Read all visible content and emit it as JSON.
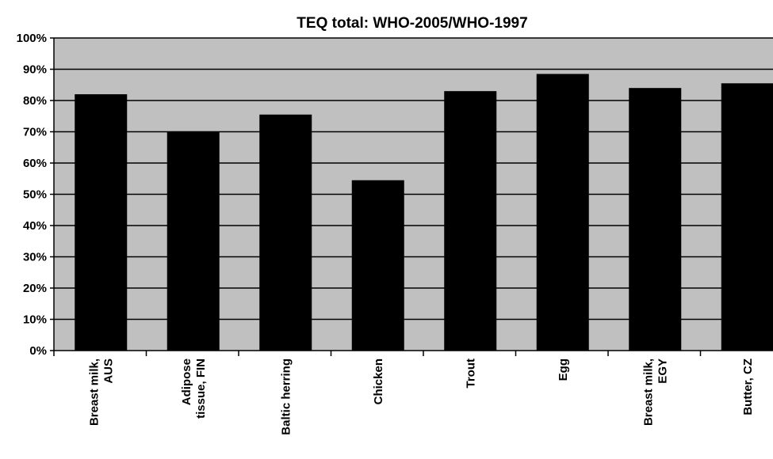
{
  "chart_data": {
    "type": "bar",
    "title": "TEQ total: WHO-2005/WHO-1997",
    "xlabel": "",
    "ylabel": "",
    "categories": [
      [
        "Breast milk,",
        "AUS"
      ],
      [
        "Adipose",
        "tissue, FIN"
      ],
      [
        "Baltic herring"
      ],
      [
        "Chicken"
      ],
      [
        "Trout"
      ],
      [
        "Egg"
      ],
      [
        "Breast milk,",
        "EGY"
      ],
      [
        "Butter, CZ"
      ]
    ],
    "values": [
      82,
      70,
      75.5,
      54.5,
      83,
      88.5,
      84,
      85.5
    ],
    "ylim": [
      0,
      100
    ],
    "yticks": [
      "0%",
      "10%",
      "20%",
      "30%",
      "40%",
      "50%",
      "60%",
      "70%",
      "80%",
      "90%",
      "100%"
    ],
    "grid": true,
    "legend": "none",
    "colors": {
      "plot_background": "#c0c0c0",
      "bar": "#000000",
      "gridline": "#000000"
    }
  }
}
